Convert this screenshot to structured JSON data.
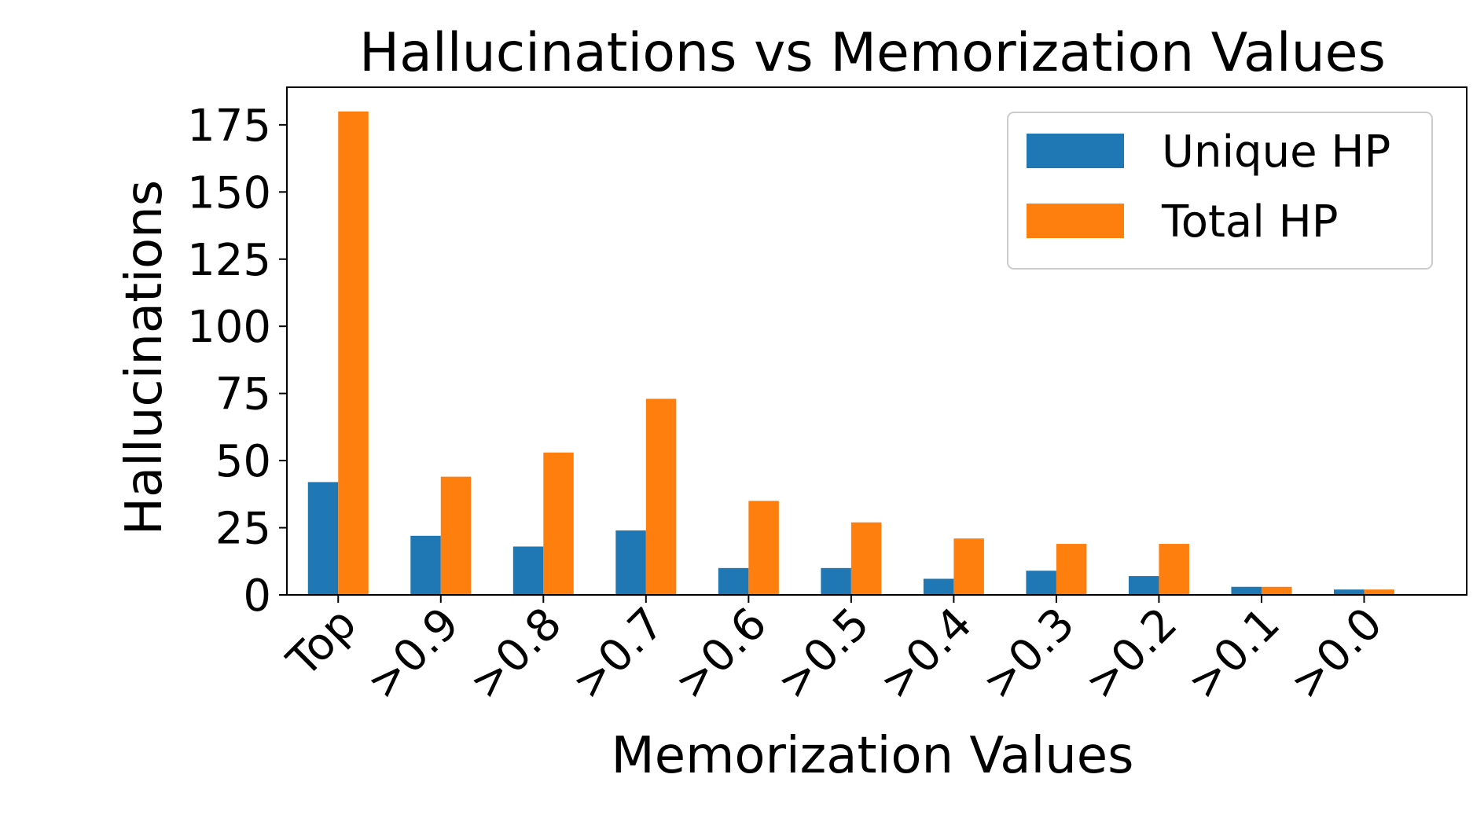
{
  "chart_data": {
    "type": "bar",
    "title": "Hallucinations vs Memorization Values",
    "xlabel": "Memorization Values",
    "ylabel": "Hallucinations",
    "categories": [
      "Top",
      ">0.9",
      ">0.8",
      ">0.7",
      ">0.6",
      ">0.5",
      ">0.4",
      ">0.3",
      ">0.2",
      ">0.1",
      ">0.0"
    ],
    "series": [
      {
        "name": "Unique HP",
        "color": "#1f77b4",
        "values": [
          42,
          22,
          18,
          24,
          10,
          10,
          6,
          9,
          7,
          3,
          2
        ]
      },
      {
        "name": "Total HP",
        "color": "#ff7f0e",
        "values": [
          180,
          44,
          53,
          73,
          35,
          27,
          21,
          19,
          19,
          3,
          2
        ]
      }
    ],
    "ylim": [
      0,
      189
    ],
    "yticks": [
      0,
      25,
      50,
      75,
      100,
      125,
      150,
      175
    ],
    "legend": "top-right",
    "grid": false
  }
}
